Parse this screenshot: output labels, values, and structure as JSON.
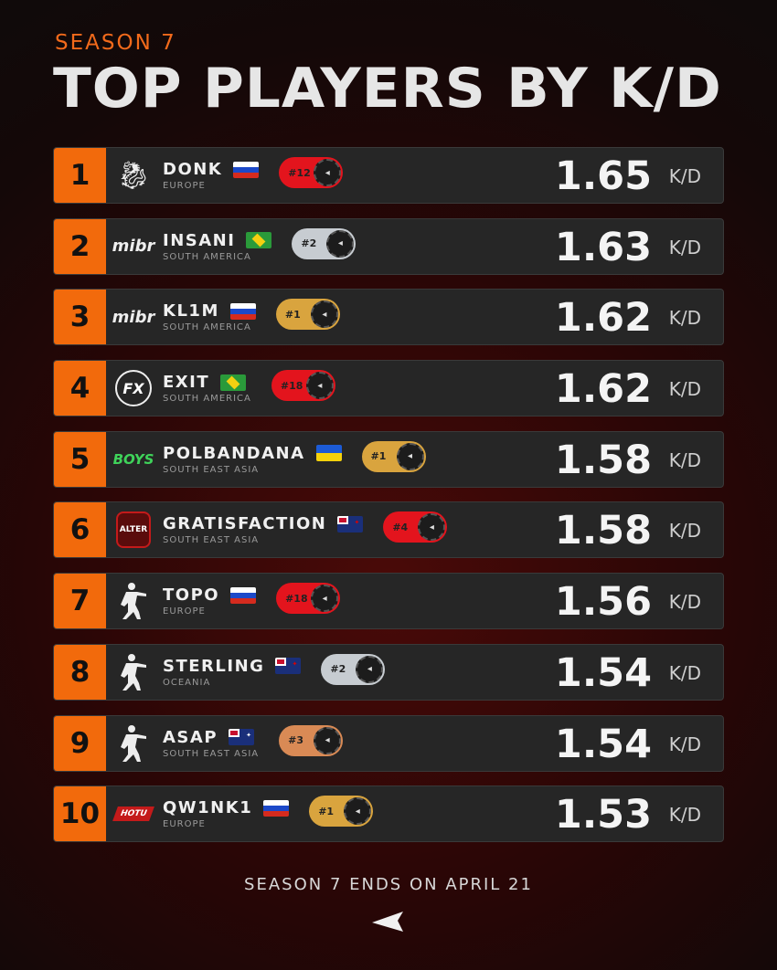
{
  "header": {
    "season": "SEASON 7",
    "title": "TOP PLAYERS BY K/D"
  },
  "kd_label": "K/D",
  "players": [
    {
      "rank": "1",
      "team": "spirit-logo",
      "name": "DONK",
      "region": "EUROPE",
      "flag": "russia",
      "badge": "#12",
      "badge_color": "#e3141d",
      "kd": "1.65"
    },
    {
      "rank": "2",
      "team": "mibr-logo",
      "name": "INSANI",
      "region": "SOUTH AMERICA",
      "flag": "brazil",
      "badge": "#2",
      "badge_color": "#c7ccd1",
      "kd": "1.63"
    },
    {
      "rank": "3",
      "team": "mibr-logo",
      "name": "KL1M",
      "region": "SOUTH AMERICA",
      "flag": "russia",
      "badge": "#1",
      "badge_color": "#d9a43e",
      "kd": "1.62"
    },
    {
      "rank": "4",
      "team": "fx-logo",
      "name": "EXIT",
      "region": "SOUTH AMERICA",
      "flag": "brazil",
      "badge": "#18",
      "badge_color": "#e3141d",
      "kd": "1.62"
    },
    {
      "rank": "5",
      "team": "basement-boys-logo",
      "name": "POLBANDANA",
      "region": "SOUTH EAST ASIA",
      "flag": "ukraine",
      "badge": "#1",
      "badge_color": "#d9a43e",
      "kd": "1.58"
    },
    {
      "rank": "6",
      "team": "alter-ego-logo",
      "name": "GRATISFACTION",
      "region": "SOUTH EAST ASIA",
      "flag": "new-zealand",
      "badge": "#4",
      "badge_color": "#e3141d",
      "kd": "1.58"
    },
    {
      "rank": "7",
      "team": "cs-player-logo",
      "name": "TOPO",
      "region": "EUROPE",
      "flag": "russia",
      "badge": "#18",
      "badge_color": "#e3141d",
      "kd": "1.56"
    },
    {
      "rank": "8",
      "team": "cs-player-logo",
      "name": "STERLING",
      "region": "OCEANIA",
      "flag": "new-zealand",
      "badge": "#2",
      "badge_color": "#c7ccd1",
      "kd": "1.54"
    },
    {
      "rank": "9",
      "team": "cs-player-logo",
      "name": "ASAP",
      "region": "SOUTH EAST ASIA",
      "flag": "australia",
      "badge": "#3",
      "badge_color": "#d98a55",
      "kd": "1.54"
    },
    {
      "rank": "10",
      "team": "hotu-logo",
      "name": "QW1NK1",
      "region": "EUROPE",
      "flag": "russia",
      "badge": "#1",
      "badge_color": "#d9a43e",
      "kd": "1.53"
    }
  ],
  "footer": "SEASON 7 ENDS ON APRIL 21",
  "accent": "#f26a0c"
}
